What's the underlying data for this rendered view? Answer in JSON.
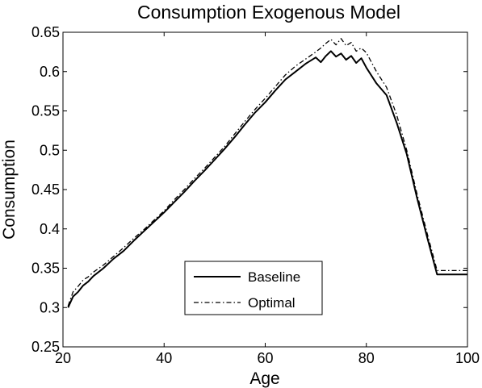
{
  "chart_data": {
    "type": "line",
    "title": "Consumption Exogenous Model",
    "xlabel": "Age",
    "ylabel": "Consumption",
    "xlim": [
      20,
      100
    ],
    "ylim": [
      0.25,
      0.65
    ],
    "xticks": [
      20,
      40,
      60,
      80,
      100
    ],
    "xtick_labels": [
      "20",
      "40",
      "60",
      "80",
      "100"
    ],
    "yticks": [
      0.25,
      0.3,
      0.35,
      0.4,
      0.45,
      0.5,
      0.55,
      0.6,
      0.65
    ],
    "ytick_labels": [
      "0.25",
      "0.3",
      "0.35",
      "0.4",
      "0.45",
      "0.5",
      "0.55",
      "0.6",
      "0.65"
    ],
    "grid": false,
    "legend_position": "bottom-center",
    "series": [
      {
        "name": "Baseline",
        "style": "solid",
        "color": "#000000",
        "x": [
          21,
          22,
          23,
          24,
          25,
          26,
          28,
          30,
          32,
          34,
          36,
          38,
          40,
          42,
          44,
          46,
          48,
          50,
          52,
          54,
          56,
          58,
          60,
          62,
          64,
          66,
          68,
          70,
          71,
          72,
          73,
          74,
          75,
          76,
          77,
          78,
          79,
          80,
          82,
          84,
          86,
          88,
          90,
          92,
          94,
          100
        ],
        "y": [
          0.3,
          0.314,
          0.32,
          0.328,
          0.333,
          0.34,
          0.35,
          0.362,
          0.372,
          0.385,
          0.397,
          0.409,
          0.421,
          0.434,
          0.447,
          0.461,
          0.474,
          0.488,
          0.502,
          0.517,
          0.533,
          0.548,
          0.561,
          0.576,
          0.59,
          0.6,
          0.61,
          0.618,
          0.612,
          0.62,
          0.626,
          0.619,
          0.623,
          0.615,
          0.62,
          0.611,
          0.617,
          0.605,
          0.585,
          0.57,
          0.535,
          0.495,
          0.44,
          0.39,
          0.342,
          0.342
        ]
      },
      {
        "name": "Optimal",
        "style": "dash-dot",
        "color": "#000000",
        "x": [
          21,
          22,
          23,
          24,
          25,
          26,
          28,
          30,
          32,
          34,
          36,
          38,
          40,
          42,
          44,
          46,
          48,
          50,
          52,
          54,
          56,
          58,
          60,
          62,
          64,
          66,
          68,
          70,
          71,
          72,
          73,
          74,
          75,
          76,
          77,
          78,
          79,
          80,
          82,
          84,
          86,
          88,
          90,
          92,
          94,
          100
        ],
        "y": [
          0.302,
          0.32,
          0.327,
          0.335,
          0.339,
          0.345,
          0.354,
          0.365,
          0.376,
          0.388,
          0.399,
          0.411,
          0.423,
          0.437,
          0.45,
          0.464,
          0.477,
          0.491,
          0.505,
          0.521,
          0.537,
          0.552,
          0.566,
          0.581,
          0.596,
          0.607,
          0.616,
          0.625,
          0.63,
          0.636,
          0.641,
          0.634,
          0.642,
          0.633,
          0.637,
          0.626,
          0.63,
          0.624,
          0.6,
          0.58,
          0.545,
          0.5,
          0.445,
          0.395,
          0.347,
          0.347
        ]
      }
    ]
  }
}
